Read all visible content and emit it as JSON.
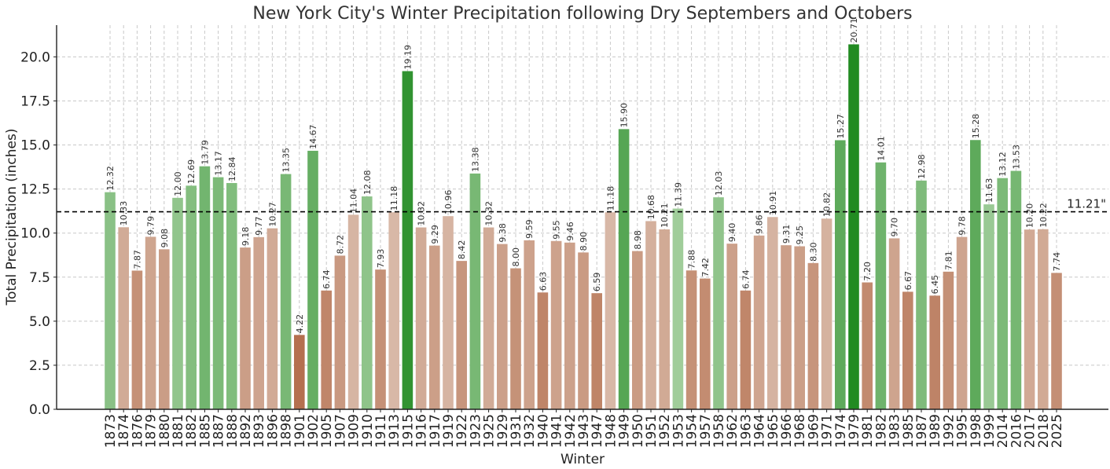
{
  "chart_data": {
    "type": "bar",
    "title": "New York City's Winter Precipitation following Dry Septembers and Octobers",
    "xlabel": "Winter",
    "ylabel": "Total Precipitation (inches)",
    "ylim": [
      0,
      21.8
    ],
    "yticks": [
      "0.0",
      "2.5",
      "5.0",
      "7.5",
      "10.0",
      "12.5",
      "15.0",
      "17.5",
      "20.0"
    ],
    "ytick_values": [
      0,
      2.5,
      5,
      7.5,
      10,
      12.5,
      15,
      17.5,
      20
    ],
    "grid": true,
    "reference_line": {
      "value": 11.21,
      "label": "11.21\""
    },
    "categories": [
      "1873",
      "1874",
      "1876",
      "1879",
      "1880",
      "1881",
      "1882",
      "1885",
      "1887",
      "1888",
      "1892",
      "1893",
      "1896",
      "1898",
      "1901",
      "1902",
      "1905",
      "1907",
      "1909",
      "1910",
      "1911",
      "1913",
      "1915",
      "1916",
      "1917",
      "1919",
      "1922",
      "1923",
      "1925",
      "1929",
      "1931",
      "1932",
      "1940",
      "1941",
      "1942",
      "1943",
      "1947",
      "1948",
      "1949",
      "1950",
      "1951",
      "1952",
      "1953",
      "1954",
      "1957",
      "1958",
      "1962",
      "1963",
      "1964",
      "1965",
      "1966",
      "1968",
      "1969",
      "1971",
      "1974",
      "1979",
      "1981",
      "1982",
      "1983",
      "1985",
      "1987",
      "1989",
      "1992",
      "1995",
      "1998",
      "1999",
      "2014",
      "2016",
      "2017",
      "2018",
      "2025"
    ],
    "values": [
      12.32,
      10.33,
      7.87,
      9.79,
      9.08,
      12.0,
      12.69,
      13.79,
      13.17,
      12.84,
      9.18,
      9.77,
      10.27,
      13.35,
      4.22,
      14.67,
      6.74,
      8.72,
      11.04,
      12.08,
      7.93,
      11.18,
      19.19,
      10.32,
      9.29,
      10.96,
      8.42,
      13.38,
      10.32,
      9.38,
      8.0,
      9.59,
      6.63,
      9.55,
      9.46,
      8.9,
      6.59,
      11.18,
      15.9,
      8.98,
      10.68,
      10.21,
      11.39,
      7.88,
      7.42,
      12.03,
      9.4,
      6.74,
      9.86,
      10.91,
      9.31,
      9.25,
      8.3,
      10.82,
      15.27,
      20.71,
      7.2,
      14.01,
      9.7,
      6.67,
      12.98,
      6.45,
      7.81,
      9.78,
      15.28,
      11.63,
      13.12,
      13.53,
      10.2,
      10.22,
      7.74
    ],
    "value_labels": [
      "12.32",
      "10.33",
      "7.87",
      "9.79",
      "9.08",
      "12.00",
      "12.69",
      "13.79",
      "13.17",
      "12.84",
      "9.18",
      "9.77",
      "10.27",
      "13.35",
      "4.22",
      "14.67",
      "6.74",
      "8.72",
      "11.04",
      "12.08",
      "7.93",
      "11.18",
      "19.19",
      "10.32",
      "9.29",
      "10.96",
      "8.42",
      "13.38",
      "10.32",
      "9.38",
      "8.00",
      "9.59",
      "6.63",
      "9.55",
      "9.46",
      "8.90",
      "6.59",
      "11.18",
      "15.90",
      "8.98",
      "10.68",
      "10.21",
      "11.39",
      "7.88",
      "7.42",
      "12.03",
      "9.40",
      "6.74",
      "9.86",
      "10.91",
      "9.31",
      "9.25",
      "8.30",
      "10.82",
      "15.27",
      "20.71",
      "7.20",
      "14.01",
      "9.70",
      "6.67",
      "12.98",
      "6.45",
      "7.81",
      "9.78",
      "15.28",
      "11.63",
      "13.12",
      "13.53",
      "10.20",
      "10.22",
      "7.74"
    ],
    "colors": {
      "wet_light": "#a8d1a2",
      "wet_dark": "#228b22",
      "dry_light": "#d8b9a8",
      "dry_dark": "#b5704f",
      "reference_line": "#000000",
      "grid": "#c8c8c8"
    }
  }
}
